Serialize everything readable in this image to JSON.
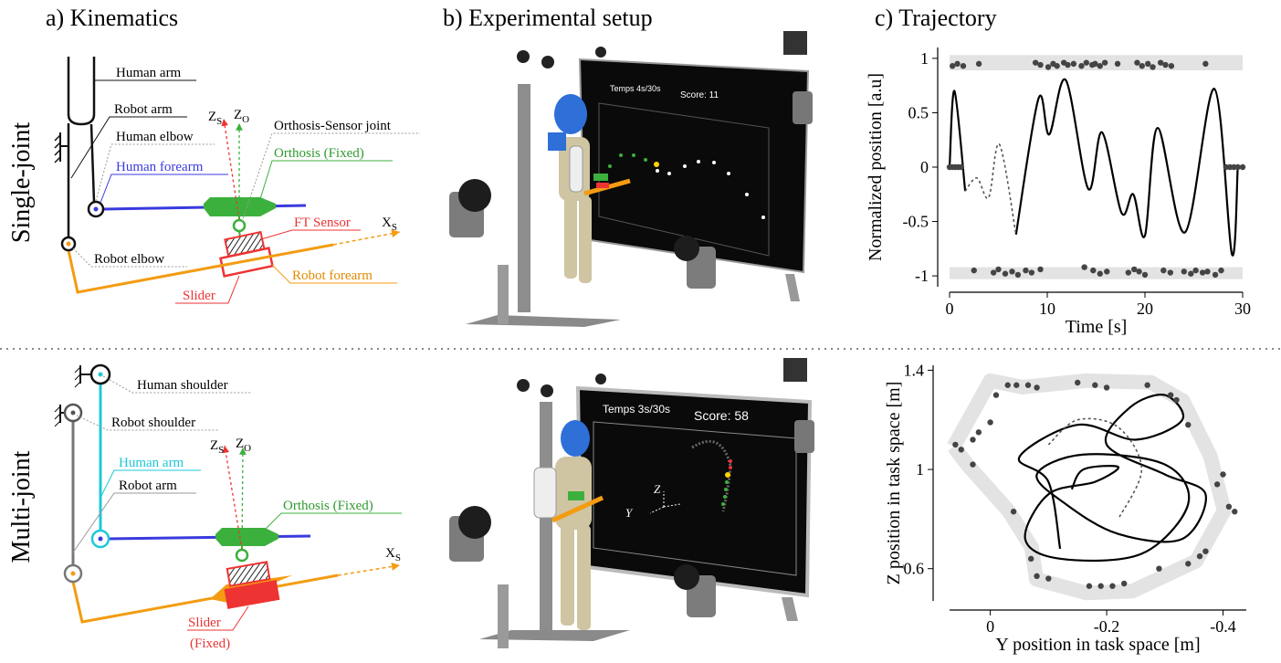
{
  "panel_titles": [
    "a) Kinematics",
    "b) Experimental setup",
    "c) Trajectory"
  ],
  "row_labels": [
    "Single-joint",
    "Multi-joint"
  ],
  "single_joint": {
    "labels": [
      "Human arm",
      "Robot arm",
      "Human elbow",
      "Human forearm",
      "Orthosis-Sensor joint",
      "Orthosis (Fixed)",
      "FT Sensor",
      "Robot elbow",
      "Robot forearm",
      "Slider"
    ],
    "axes": [
      {
        "main": "Z",
        "sub": "S"
      },
      {
        "main": "Z",
        "sub": "O"
      },
      {
        "main": "X",
        "sub": "S"
      }
    ]
  },
  "multi_joint": {
    "labels": [
      "Human shoulder",
      "Robot shoulder",
      "Human arm",
      "Robot arm",
      "Orthosis (Fixed)",
      "Slider",
      "(Fixed)"
    ],
    "axes": [
      {
        "main": "Z",
        "sub": "S"
      },
      {
        "main": "Z",
        "sub": "O"
      },
      {
        "main": "X",
        "sub": "S"
      }
    ]
  },
  "setup": [
    {
      "timer": "Temps 4s/30s",
      "score": "Score: 11"
    },
    {
      "timer": "Temps 3s/30s",
      "score": "Score: 58",
      "axes": [
        "Z",
        "Y"
      ]
    }
  ],
  "chart_data": [
    {
      "type": "line",
      "x_label": "Time [s]",
      "y_label": "Normalized position [a.u]",
      "xlim": [
        0,
        30
      ],
      "ylim": [
        -1.1,
        1.1
      ],
      "xticks": [
        0,
        10,
        20,
        30
      ],
      "yticks": [
        1,
        0.5,
        0,
        -0.5,
        -1
      ],
      "bands": [
        [
          0.89,
          1.03
        ],
        [
          -1.03,
          -0.92
        ]
      ],
      "band_color": "#e3e3e3",
      "series": [
        {
          "style": "solid",
          "color": "#000000",
          "x": [
            0,
            0.5,
            1.6,
            2.8,
            4,
            5.1,
            6.8,
            9.1,
            10.2,
            11.9,
            14.2,
            15.6,
            17.6,
            18.8,
            20,
            21.3,
            24.1,
            27.1,
            28.9,
            29.5
          ],
          "values": [
            0,
            0.7,
            -0.22,
            null,
            null,
            null,
            -0.62,
            0.63,
            0.3,
            0.8,
            -0.2,
            0.32,
            -0.42,
            -0.25,
            -0.63,
            0.36,
            -0.6,
            0.72,
            -0.8,
            0
          ]
        },
        {
          "style": "dashed",
          "color": "#555555",
          "x": [
            1.6,
            2.8,
            4,
            5.1,
            6.8
          ],
          "values": [
            -0.22,
            -0.1,
            -0.28,
            0.21,
            -0.62
          ]
        },
        {
          "style": "points",
          "color": "#444444",
          "x": [
            0.3,
            0.8,
            1.4,
            3.0,
            8.8,
            9.3,
            10.1,
            10.6,
            11.0,
            11.7,
            12.1,
            12.7,
            13.5,
            14.0,
            14.6,
            14.9,
            15.4,
            15.9,
            17.2,
            19.2,
            19.7,
            20.3,
            20.8,
            21.6,
            22.1,
            22.7,
            26.2
          ],
          "values": [
            0.93,
            0.95,
            0.93,
            0.95,
            0.96,
            0.94,
            0.92,
            0.95,
            0.93,
            0.96,
            0.94,
            0.95,
            0.93,
            0.96,
            0.94,
            0.95,
            0.93,
            0.96,
            0.95,
            0.96,
            0.93,
            0.95,
            0.92,
            0.96,
            0.94,
            0.93,
            0.95
          ]
        },
        {
          "style": "points",
          "color": "#444444",
          "x": [
            2.5,
            4.5,
            5.0,
            5.7,
            6.4,
            7.0,
            7.8,
            8.4,
            9.3,
            13.8,
            14.7,
            15.4,
            16.1,
            18.3,
            18.9,
            19.4,
            20.0,
            21.9,
            22.6,
            24.0,
            24.7,
            25.2,
            25.9,
            26.4,
            27.2,
            27.8
          ],
          "values": [
            -0.95,
            -0.97,
            -0.94,
            -0.98,
            -0.96,
            -0.99,
            -0.95,
            -0.97,
            -0.94,
            -0.92,
            -0.95,
            -0.98,
            -0.96,
            -0.97,
            -0.94,
            -0.96,
            -0.99,
            -0.95,
            -0.97,
            -0.96,
            -0.98,
            -0.95,
            -0.97,
            -0.96,
            -0.99,
            -0.95
          ]
        },
        {
          "style": "points",
          "color": "#444444",
          "x": [
            0,
            0.3,
            0.6,
            0.9,
            1.2,
            28.3,
            28.7,
            29.1,
            29.5,
            30
          ],
          "values": [
            0,
            0,
            0,
            0,
            0,
            0,
            0,
            0,
            0,
            0
          ]
        }
      ]
    },
    {
      "type": "line",
      "x_label": "Y position in task space [m]",
      "y_label": "Z position in task space [m]",
      "xlim": [
        0.07,
        -0.44
      ],
      "ylim": [
        0.47,
        1.42
      ],
      "xticks": [
        0,
        -0.2,
        -0.4
      ],
      "yticks": [
        1.4,
        1,
        0.6
      ],
      "series": [
        {
          "style": "band",
          "color": "#e3e3e3",
          "x": [
            0.063,
            0,
            -0.055,
            -0.165,
            -0.276,
            -0.331,
            -0.378,
            -0.402,
            -0.354,
            -0.244,
            -0.165,
            -0.079,
            -0.071,
            -0.031,
            0.039,
            0.063
          ],
          "values": [
            1.092,
            1.358,
            1.332,
            1.358,
            1.351,
            1.277,
            1.055,
            0.834,
            0.631,
            0.509,
            0.502,
            0.557,
            0.686,
            0.834,
            1.018,
            1.092
          ]
        },
        {
          "style": "solid",
          "color": "#000000",
          "x": [
            -0.12,
            -0.1,
            -0.05,
            -0.15,
            -0.25,
            -0.33,
            -0.3,
            -0.24,
            -0.2,
            -0.3,
            -0.37,
            -0.33,
            -0.22,
            -0.13,
            -0.08,
            -0.16,
            -0.3,
            -0.34,
            -0.26,
            -0.12,
            -0.06,
            -0.1,
            -0.18,
            -0.22,
            -0.16,
            -0.14
          ],
          "values": [
            0.68,
            0.95,
            1.05,
            1.18,
            1.12,
            1.2,
            1.3,
            1.25,
            1.1,
            0.98,
            0.9,
            0.72,
            0.74,
            0.86,
            0.98,
            1.06,
            1.02,
            0.86,
            0.66,
            0.64,
            0.72,
            0.9,
            0.95,
            1.01,
            1.0,
            0.92
          ]
        },
        {
          "style": "dashed",
          "color": "#555555",
          "x": [
            -0.1,
            -0.15,
            -0.22,
            -0.26,
            -0.22
          ],
          "values": [
            1.1,
            1.2,
            1.17,
            1.0,
            0.8
          ]
        },
        {
          "style": "points",
          "color": "#444444",
          "x": [
            0.06,
            0.05,
            0.03,
            0.02,
            0,
            -0.01,
            -0.03,
            -0.045,
            -0.065,
            -0.08,
            -0.15,
            -0.18,
            -0.2,
            -0.27,
            -0.31,
            -0.32,
            -0.34,
            -0.4,
            -0.39,
            -0.41,
            -0.42,
            -0.37,
            -0.36,
            -0.34,
            -0.29,
            -0.23,
            -0.21,
            -0.19,
            -0.17,
            -0.1,
            -0.08,
            -0.07,
            -0.04,
            0.03
          ],
          "values": [
            1.1,
            1.08,
            1.12,
            1.15,
            1.19,
            1.3,
            1.34,
            1.34,
            1.34,
            1.33,
            1.35,
            1.34,
            1.33,
            1.34,
            1.3,
            1.28,
            1.18,
            0.98,
            0.94,
            0.85,
            0.83,
            0.67,
            0.65,
            0.62,
            0.6,
            0.54,
            0.53,
            0.53,
            0.53,
            0.56,
            0.57,
            0.64,
            0.83,
            1.02
          ]
        }
      ]
    }
  ]
}
